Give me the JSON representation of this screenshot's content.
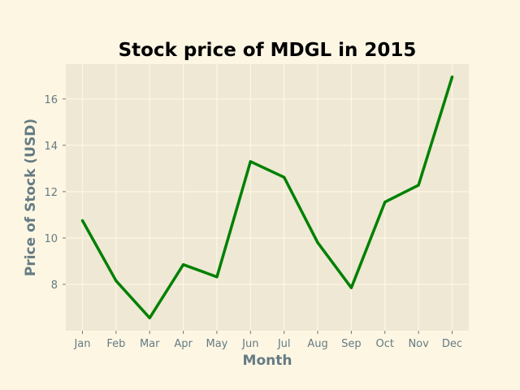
{
  "chart_data": {
    "type": "line",
    "title": "Stock price of MDGL in 2015",
    "xlabel": "Month",
    "ylabel": "Price of Stock (USD)",
    "categories": [
      "Jan",
      "Feb",
      "Mar",
      "Apr",
      "May",
      "Jun",
      "Jul",
      "Aug",
      "Sep",
      "Oct",
      "Nov",
      "Dec"
    ],
    "series": [
      {
        "values": [
          10.75,
          8.15,
          6.55,
          8.85,
          8.32,
          13.3,
          12.62,
          9.8,
          7.85,
          11.55,
          12.28,
          16.95
        ],
        "color": "#008000"
      }
    ],
    "yticks": [
      8,
      10,
      12,
      14,
      16
    ],
    "ylim": [
      6.0,
      17.5
    ],
    "grid": true,
    "colors": {
      "figure_bg": "#fdf6e3",
      "plot_bg": "#eee8d5",
      "grid": "#fdf6e3",
      "tick": "#657b83"
    }
  }
}
